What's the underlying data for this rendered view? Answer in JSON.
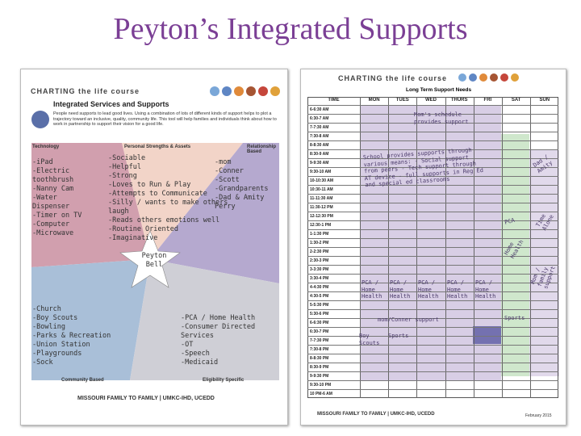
{
  "title": "Peyton’s Integrated Supports",
  "left_doc": {
    "brand": "CHARTING the life course",
    "heading": "Integrated Services and Supports",
    "intro": "People need supports to lead good lives. Using a combination of lots of different kinds of support helps to plot a trajectory toward an inclusive, quality, community life. This tool will help families and individuals think about how to work in partnership to support their vision for a good life.",
    "center": "Peyton Bell",
    "sections": [
      {
        "label": "Technology",
        "items": [
          "-iPad",
          "-Electric toothbrush",
          "-Nanny Cam",
          "-Water Dispenser",
          "-Timer on TV",
          "-Computer",
          "-Microwave"
        ]
      },
      {
        "label": "Personal Strengths & Assets",
        "items": [
          "-Sociable",
          "-Helpful",
          "-Strong",
          "-Loves to Run & Play",
          "-Attempts to Communicate",
          "-Silly / wants to make others laugh",
          "-Reads others emotions well",
          "-Routine Oriented",
          "-Imaginative"
        ]
      },
      {
        "label": "Relationship Based",
        "items": [
          "-mom",
          "-Conner",
          "-Scott",
          "-Grandparents",
          "-Dad & Amity",
          "Perry"
        ]
      },
      {
        "label": "Community Based",
        "items": [
          "-Church",
          "-Boy Scouts",
          "-Bowling",
          "-Parks & Recreation",
          "-Union Station",
          "-Playgrounds",
          "-Sock"
        ]
      },
      {
        "label": "Eligibility Specific",
        "items": [
          "-PCA / Home Health",
          "-Consumer Directed Services",
          "-OT",
          "-Speech",
          "-Medicaid"
        ]
      }
    ],
    "footer": "MISSOURI FAMILY TO FAMILY | UMKC-IHD, UCEDD"
  },
  "right_doc": {
    "brand": "CHARTING the life course",
    "heading": "Long Term Support Needs",
    "columns": [
      "TIME",
      "MON",
      "TUES",
      "WED",
      "THURS",
      "FRI",
      "SAT",
      "SUN"
    ],
    "times": [
      "6-6:30 AM",
      "6:30-7 AM",
      "7-7:30 AM",
      "7:30-8 AM",
      "8-8:30 AM",
      "8:30-9 AM",
      "9-9:30 AM",
      "9:30-10 AM",
      "10-10:30 AM",
      "10:30-11 AM",
      "11-11:30 AM",
      "11:30-12 PM",
      "12-12:30 PM",
      "12:30-1 PM",
      "1-1:30 PM",
      "1:30-2 PM",
      "2-2:30 PM",
      "2:30-3 PM",
      "3-3:30 PM",
      "3:30-4 PM",
      "4-4:30 PM",
      "4:30-5 PM",
      "5-5:30 PM",
      "5:30-6 PM",
      "6-6:30 PM",
      "6:30-7 PM",
      "7-7:30 PM",
      "7:30-8 PM",
      "8-8:30 PM",
      "8:30-9 PM",
      "9-9:30 PM",
      "9:30-10 PM",
      "10 PM-6 AM"
    ],
    "notes": [
      "Mom's schedule provides support",
      "School provides supports through various means: - Social support from peers - Tech support through AT device - full supports in Reg Ed and special ed classrooms",
      "PCA / Home Health",
      "PCA / Home Health",
      "PCA / Home Health",
      "PCA / Home Health",
      "PCA / Home Health",
      "mom/Conner support",
      "Boy Scouts",
      "Sports",
      "Sports",
      "PCA",
      "Time Alone",
      "Home Health",
      "Dad / Amity",
      "Mom / family support"
    ],
    "footer": "MISSOURI FAMILY TO FAMILY | UMKC-IHD, UCEDD",
    "date": "February 2015"
  }
}
